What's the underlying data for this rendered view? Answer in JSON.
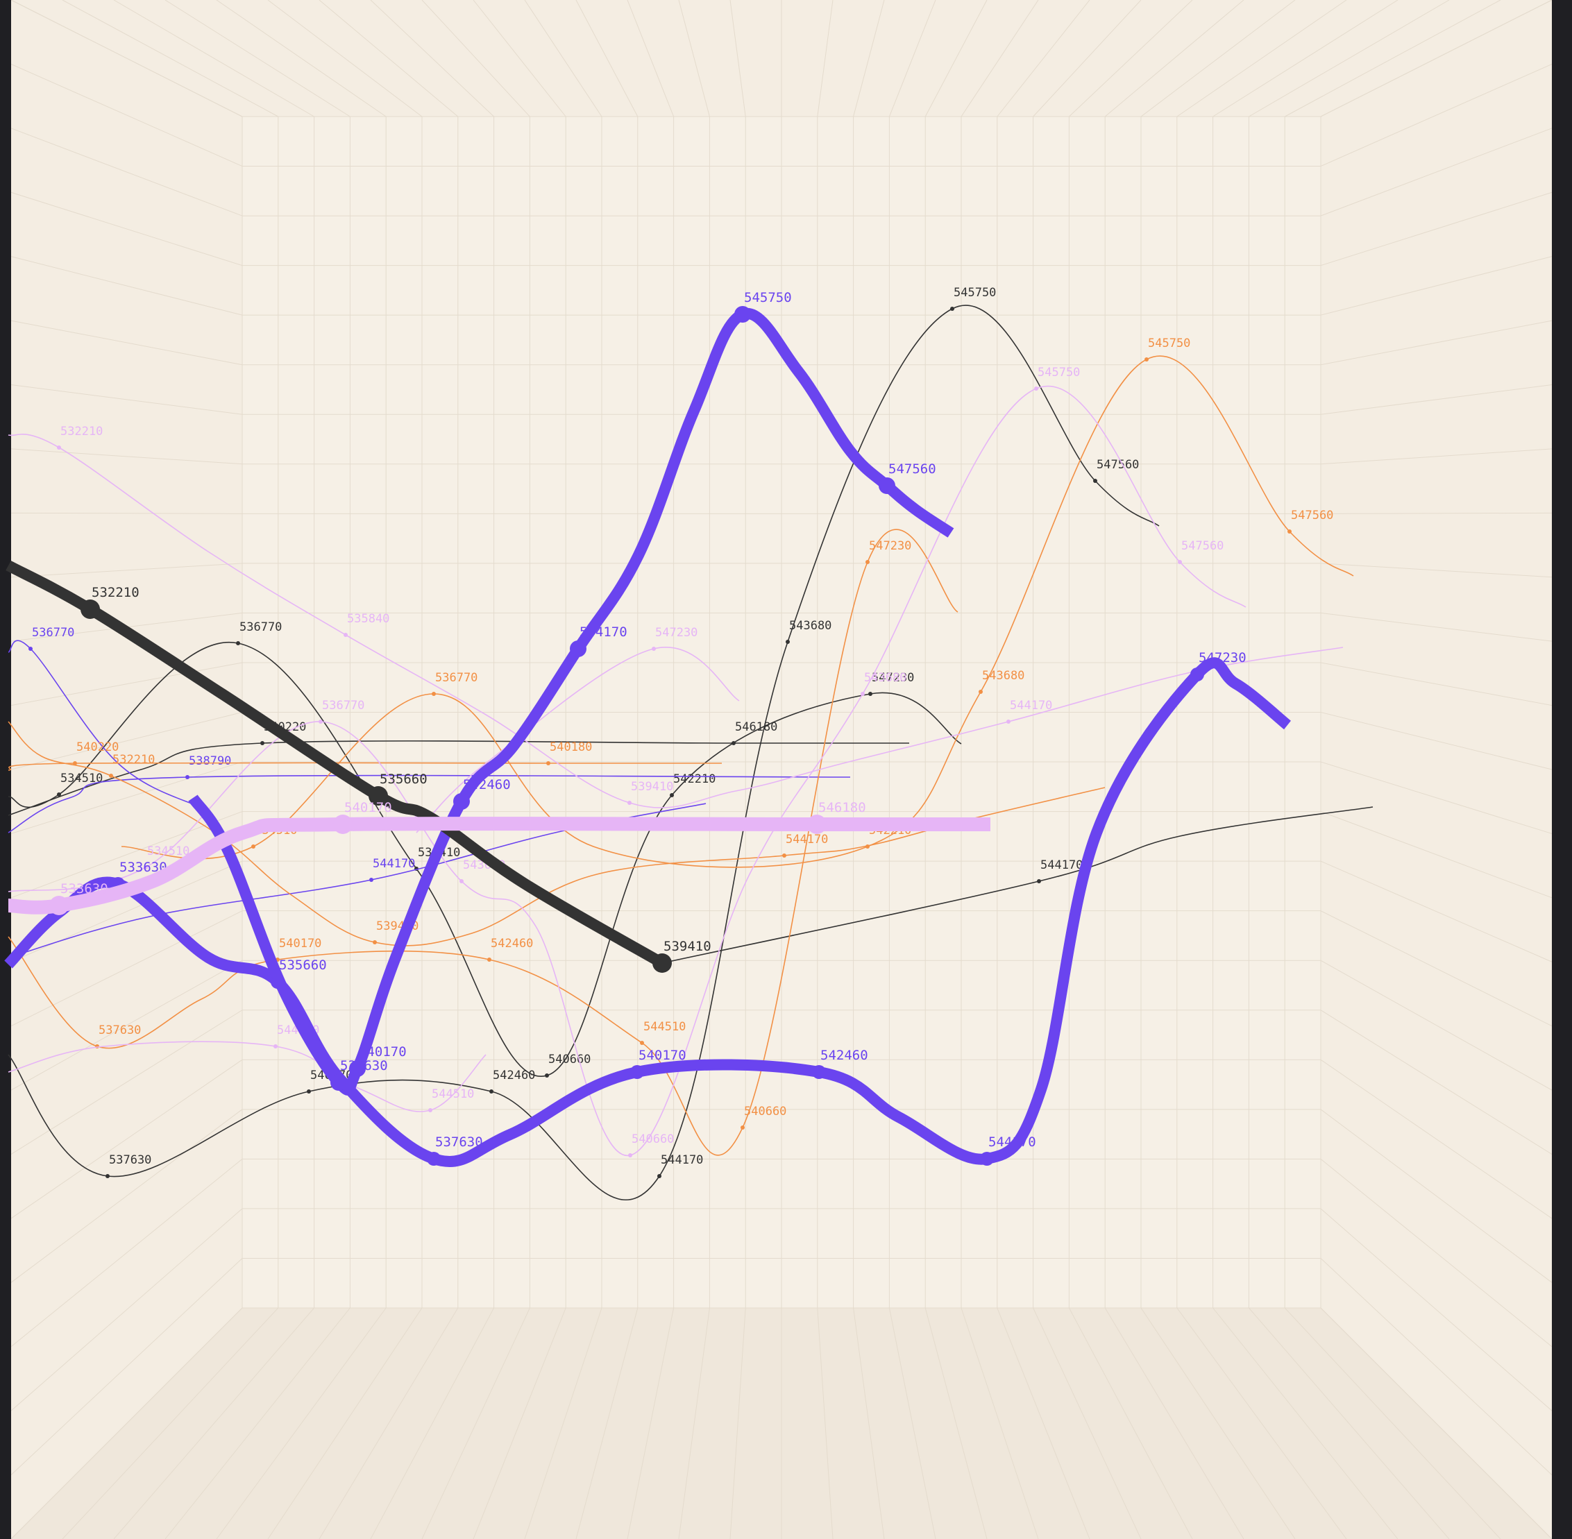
{
  "chart_data": {
    "type": "line",
    "colors": {
      "background": "#f6f0e6",
      "wall": "#f4ede2",
      "floor": "#efe7db",
      "grid": "#e4dbcd",
      "border": "#1f1f23"
    },
    "series": [
      {
        "color": "#6a44ef",
        "width": 16,
        "marker": 10,
        "label_size": 19,
        "points": [
          {
            "x": 12,
            "y": 1390
          },
          {
            "x": 85,
            "y": 1315
          },
          {
            "x": 170,
            "y": 1274,
            "label": "533630"
          },
          {
            "x": 300,
            "y": 1380
          },
          {
            "x": 400,
            "y": 1415,
            "label": "535660"
          },
          {
            "x": 490,
            "y": 1555
          },
          {
            "x": 625,
            "y": 1670,
            "label": "537630"
          },
          {
            "x": 735,
            "y": 1635
          },
          {
            "x": 918,
            "y": 1545,
            "label": "540170"
          },
          {
            "x": 1180,
            "y": 1545,
            "label": "542460"
          },
          {
            "x": 1295,
            "y": 1610
          },
          {
            "x": 1422,
            "y": 1670,
            "label": "544170"
          },
          {
            "x": 1500,
            "y": 1570
          },
          {
            "x": 1580,
            "y": 1200
          },
          {
            "x": 1725,
            "y": 972,
            "label": "547230"
          },
          {
            "x": 1780,
            "y": 985
          },
          {
            "x": 1855,
            "y": 1045
          }
        ]
      },
      {
        "color": "#6a44ef",
        "width": 16,
        "marker": 12,
        "label_size": 19,
        "points": [
          {
            "x": 278,
            "y": 1150
          },
          {
            "x": 328,
            "y": 1225
          },
          {
            "x": 410,
            "y": 1430
          },
          {
            "x": 488,
            "y": 1560,
            "label": "537630"
          },
          {
            "x": 515,
            "y": 1540,
            "label": "540170"
          },
          {
            "x": 570,
            "y": 1380
          },
          {
            "x": 665,
            "y": 1155,
            "label": "542460"
          },
          {
            "x": 740,
            "y": 1075
          },
          {
            "x": 833,
            "y": 935,
            "label": "544170"
          },
          {
            "x": 920,
            "y": 800
          },
          {
            "x": 1000,
            "y": 592
          },
          {
            "x": 1070,
            "y": 453,
            "label": "545750"
          },
          {
            "x": 1150,
            "y": 535
          },
          {
            "x": 1225,
            "y": 650
          },
          {
            "x": 1278,
            "y": 700,
            "label": "547560"
          },
          {
            "x": 1320,
            "y": 735
          },
          {
            "x": 1370,
            "y": 768
          }
        ]
      },
      {
        "color": "#333333",
        "width": 16,
        "marker": 14,
        "label_size": 19,
        "points": [
          {
            "x": 12,
            "y": 815
          },
          {
            "x": 130,
            "y": 878,
            "label": "532210"
          },
          {
            "x": 320,
            "y": 1000
          },
          {
            "x": 545,
            "y": 1147,
            "label": "535660"
          },
          {
            "x": 620,
            "y": 1178
          },
          {
            "x": 755,
            "y": 1273
          },
          {
            "x": 954,
            "y": 1388,
            "label": "539410"
          }
        ]
      },
      {
        "color": "#e6b5f6",
        "width": 20,
        "marker": 14,
        "label_size": 19,
        "points": [
          {
            "x": 12,
            "y": 1305
          },
          {
            "x": 85,
            "y": 1305,
            "label": "533630"
          },
          {
            "x": 220,
            "y": 1270
          },
          {
            "x": 350,
            "y": 1200
          },
          {
            "x": 494,
            "y": 1188,
            "label": "540170"
          },
          {
            "x": 1177,
            "y": 1188,
            "label": "546180"
          },
          {
            "x": 1427,
            "y": 1188
          }
        ]
      },
      {
        "color": "#333333",
        "width": 1.6,
        "marker": 3,
        "label_size": 17,
        "points": [
          {
            "x": 12,
            "y": 1520
          },
          {
            "x": 155,
            "y": 1695,
            "label": "537630"
          },
          {
            "x": 445,
            "y": 1573,
            "label": "540170"
          },
          {
            "x": 708,
            "y": 1573,
            "label": "542460"
          },
          {
            "x": 950,
            "y": 1695,
            "label": "544170"
          },
          {
            "x": 1135,
            "y": 925,
            "label": "543680"
          },
          {
            "x": 1372,
            "y": 445,
            "label": "545750"
          },
          {
            "x": 1578,
            "y": 693,
            "label": "547560"
          },
          {
            "x": 1670,
            "y": 758
          }
        ]
      },
      {
        "color": "#333333",
        "width": 1.6,
        "marker": 3,
        "label_size": 17,
        "points": [
          {
            "x": 12,
            "y": 1148
          },
          {
            "x": 85,
            "y": 1145,
            "label": "534510"
          },
          {
            "x": 343,
            "y": 927,
            "label": "536770"
          },
          {
            "x": 600,
            "y": 1252,
            "label": "539410"
          },
          {
            "x": 788,
            "y": 1550,
            "label": "540660"
          },
          {
            "x": 968,
            "y": 1146,
            "label": "542210"
          },
          {
            "x": 1254,
            "y": 1000,
            "label": "547230"
          },
          {
            "x": 1385,
            "y": 1072
          }
        ]
      },
      {
        "color": "#333333",
        "width": 1.6,
        "marker": 3,
        "label_size": 17,
        "points": [
          {
            "x": 12,
            "y": 1175
          },
          {
            "x": 200,
            "y": 1110
          },
          {
            "x": 378,
            "y": 1071,
            "label": "540220"
          },
          {
            "x": 1057,
            "y": 1071,
            "label": "546180"
          },
          {
            "x": 1310,
            "y": 1071
          }
        ]
      },
      {
        "color": "#333333",
        "width": 1.6,
        "marker": 3,
        "label_size": 17,
        "points": [
          {
            "x": 954,
            "y": 1388
          },
          {
            "x": 1497,
            "y": 1270,
            "label": "544170"
          },
          {
            "x": 1700,
            "y": 1205
          },
          {
            "x": 1978,
            "y": 1163
          }
        ]
      },
      {
        "color": "#6a44ef",
        "width": 1.6,
        "marker": 3,
        "label_size": 17,
        "points": [
          {
            "x": 12,
            "y": 940
          },
          {
            "x": 44,
            "y": 935,
            "label": "536770"
          },
          {
            "x": 170,
            "y": 1100
          },
          {
            "x": 292,
            "y": 1165
          }
        ]
      },
      {
        "color": "#6a44ef",
        "width": 1.6,
        "marker": 3,
        "label_size": 17,
        "points": [
          {
            "x": 12,
            "y": 1200
          },
          {
            "x": 100,
            "y": 1150
          },
          {
            "x": 270,
            "y": 1120,
            "label": "538790"
          },
          {
            "x": 1225,
            "y": 1120
          }
        ]
      },
      {
        "color": "#6a44ef",
        "width": 1.6,
        "marker": 3,
        "label_size": 17,
        "points": [
          {
            "x": 12,
            "y": 1380
          },
          {
            "x": 220,
            "y": 1320
          },
          {
            "x": 535,
            "y": 1268,
            "label": "544170"
          },
          {
            "x": 800,
            "y": 1200
          },
          {
            "x": 1017,
            "y": 1158
          }
        ]
      },
      {
        "color": "#f29045",
        "width": 1.6,
        "marker": 3,
        "label_size": 17,
        "points": [
          {
            "x": 12,
            "y": 1040
          },
          {
            "x": 60,
            "y": 1090
          },
          {
            "x": 160,
            "y": 1118,
            "label": "532210"
          },
          {
            "x": 310,
            "y": 1200
          },
          {
            "x": 420,
            "y": 1290
          },
          {
            "x": 540,
            "y": 1358,
            "label": "539410"
          },
          {
            "x": 680,
            "y": 1345
          },
          {
            "x": 860,
            "y": 1260
          },
          {
            "x": 1130,
            "y": 1233,
            "label": "544170"
          },
          {
            "x": 1245,
            "y": 1220
          },
          {
            "x": 1400,
            "y": 1180
          },
          {
            "x": 1592,
            "y": 1135
          }
        ]
      },
      {
        "color": "#f29045",
        "width": 1.6,
        "marker": 3,
        "label_size": 17,
        "points": [
          {
            "x": 12,
            "y": 1350
          },
          {
            "x": 140,
            "y": 1508,
            "label": "537630"
          },
          {
            "x": 290,
            "y": 1440
          },
          {
            "x": 400,
            "y": 1383,
            "label": "540170"
          },
          {
            "x": 705,
            "y": 1383,
            "label": "542460"
          },
          {
            "x": 925,
            "y": 1503,
            "label": "544510"
          },
          {
            "x": 1070,
            "y": 1625,
            "label": "540660"
          },
          {
            "x": 1250,
            "y": 810,
            "label": "547230"
          },
          {
            "x": 1380,
            "y": 882
          }
        ]
      },
      {
        "color": "#f29045",
        "width": 1.6,
        "marker": 3,
        "label_size": 17,
        "points": [
          {
            "x": 175,
            "y": 1220
          },
          {
            "x": 365,
            "y": 1220,
            "label": "534510"
          },
          {
            "x": 625,
            "y": 1000,
            "label": "536770"
          },
          {
            "x": 855,
            "y": 1220
          },
          {
            "x": 1250,
            "y": 1220,
            "label": "542210"
          },
          {
            "x": 1413,
            "y": 997,
            "label": "543680"
          },
          {
            "x": 1652,
            "y": 518,
            "label": "545750"
          },
          {
            "x": 1858,
            "y": 766,
            "label": "547560"
          },
          {
            "x": 1950,
            "y": 830
          }
        ]
      },
      {
        "color": "#f29045",
        "width": 1.6,
        "marker": 3,
        "label_size": 17,
        "points": [
          {
            "x": 12,
            "y": 1110
          },
          {
            "x": 108,
            "y": 1100,
            "label": "540220"
          },
          {
            "x": 790,
            "y": 1100,
            "label": "540180"
          },
          {
            "x": 1040,
            "y": 1100
          }
        ]
      },
      {
        "color": "#e6b5f6",
        "width": 1.6,
        "marker": 3,
        "label_size": 17,
        "points": [
          {
            "x": 12,
            "y": 627
          },
          {
            "x": 85,
            "y": 645,
            "label": "532210"
          },
          {
            "x": 300,
            "y": 795
          },
          {
            "x": 498,
            "y": 915,
            "label": "535840"
          },
          {
            "x": 700,
            "y": 1030
          },
          {
            "x": 907,
            "y": 1157,
            "label": "539410"
          },
          {
            "x": 1060,
            "y": 1140
          },
          {
            "x": 1215,
            "y": 1100
          },
          {
            "x": 1453,
            "y": 1040,
            "label": "544170"
          },
          {
            "x": 1720,
            "y": 968
          },
          {
            "x": 1935,
            "y": 933
          }
        ]
      },
      {
        "color": "#e6b5f6",
        "width": 1.6,
        "marker": 3,
        "label_size": 17,
        "points": [
          {
            "x": 12,
            "y": 1545
          },
          {
            "x": 150,
            "y": 1508
          },
          {
            "x": 397,
            "y": 1508,
            "label": "544170"
          },
          {
            "x": 520,
            "y": 1570
          },
          {
            "x": 620,
            "y": 1600,
            "label": "544510"
          },
          {
            "x": 700,
            "y": 1520
          }
        ]
      },
      {
        "color": "#e6b5f6",
        "width": 1.6,
        "marker": 3,
        "label_size": 17,
        "points": [
          {
            "x": 12,
            "y": 1285
          },
          {
            "x": 210,
            "y": 1250,
            "label": "534510"
          },
          {
            "x": 462,
            "y": 1040,
            "label": "536770"
          },
          {
            "x": 665,
            "y": 1270,
            "label": "543680"
          },
          {
            "x": 772,
            "y": 1335
          },
          {
            "x": 908,
            "y": 1665,
            "label": "540660"
          },
          {
            "x": 1080,
            "y": 1260
          },
          {
            "x": 1243,
            "y": 1000,
            "label": "543680"
          },
          {
            "x": 1493,
            "y": 560,
            "label": "545750"
          },
          {
            "x": 1700,
            "y": 810,
            "label": "547560"
          },
          {
            "x": 1795,
            "y": 875
          }
        ]
      },
      {
        "color": "#e6b5f6",
        "width": 1.6,
        "marker": 3,
        "label_size": 17,
        "points": [
          {
            "x": 600,
            "y": 1200
          },
          {
            "x": 700,
            "y": 1100
          },
          {
            "x": 942,
            "y": 935,
            "label": "547230"
          },
          {
            "x": 1065,
            "y": 1010
          }
        ]
      }
    ]
  }
}
